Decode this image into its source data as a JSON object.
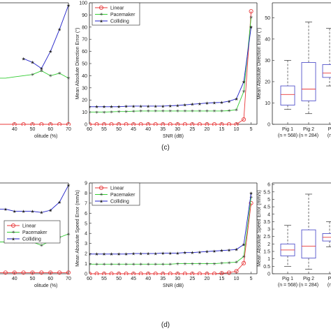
{
  "panel_labels": [
    "(c)",
    "(d)"
  ],
  "legend_names": [
    "Linear",
    "Pacemaker",
    "Colliding"
  ],
  "colors": {
    "linear": "#e8383a",
    "pacemaker": "#33cc33",
    "colliding": "#1f1fc8",
    "box": "#5555cc",
    "median": "#e8383a",
    "axis": "#222222"
  },
  "chart_data": [
    {
      "id": "c-left",
      "type": "line",
      "title": "",
      "xlabel": "olitude (%)",
      "ylabel": "",
      "xlim": [
        30,
        70
      ],
      "ylim": [
        0,
        100
      ],
      "xticks": [
        "40",
        "50",
        "60",
        "70"
      ],
      "xtick_values": [
        40,
        50,
        60,
        70
      ],
      "x": [
        30,
        35,
        40,
        45,
        50,
        55,
        60,
        65,
        70
      ],
      "series": [
        {
          "name": "Linear",
          "values": [
            0,
            0,
            0,
            0,
            0,
            0,
            0,
            0,
            0
          ]
        },
        {
          "name": "Pacemaker",
          "values": [
            38,
            38,
            39,
            40,
            41,
            44,
            40,
            42,
            38
          ]
        },
        {
          "name": "Colliding",
          "values": [
            null,
            null,
            null,
            54,
            51,
            46,
            60,
            78,
            98
          ]
        }
      ],
      "markers": {
        "Linear": [
          false,
          false,
          true,
          true,
          true,
          true,
          true,
          true,
          true
        ],
        "Pacemaker": [
          false,
          false,
          false,
          false,
          true,
          true,
          true,
          true,
          true
        ],
        "Colliding": [
          false,
          false,
          false,
          true,
          true,
          true,
          true,
          true,
          true
        ]
      },
      "legend": false
    },
    {
      "id": "c-mid",
      "type": "line",
      "title": "",
      "xlabel": "SNR (dB)",
      "ylabel": "Mean Absolute Direction Error (°)",
      "xlim": [
        60,
        3
      ],
      "ylim": [
        0,
        100
      ],
      "yticks": [
        "0",
        "10",
        "20",
        "30",
        "40",
        "50",
        "60",
        "70",
        "80",
        "90",
        "100"
      ],
      "ytick_values": [
        0,
        10,
        20,
        30,
        40,
        50,
        60,
        70,
        80,
        90,
        100
      ],
      "xticks": [
        "60",
        "55",
        "50",
        "45",
        "40",
        "35",
        "30",
        "25",
        "20",
        "15",
        "10",
        "5"
      ],
      "xtick_values": [
        60,
        55,
        50,
        45,
        40,
        35,
        30,
        25,
        20,
        15,
        10,
        5
      ],
      "x": [
        60,
        57.5,
        55,
        52.5,
        50,
        47.5,
        45,
        42.5,
        40,
        37.5,
        35,
        32.5,
        30,
        27.5,
        25,
        22.5,
        20,
        17.5,
        15,
        12.5,
        10,
        7.5,
        5
      ],
      "series": [
        {
          "name": "Linear",
          "values": [
            0,
            0,
            0,
            0,
            0,
            0,
            0,
            0,
            0,
            0,
            0,
            0,
            0,
            0,
            0,
            0,
            0,
            0,
            0,
            0,
            0,
            4,
            93
          ]
        },
        {
          "name": "Pacemaker",
          "values": [
            10,
            10,
            10,
            10.3,
            10.5,
            10.5,
            10.8,
            11,
            11,
            11,
            11,
            11,
            11,
            11,
            11,
            11,
            11,
            11,
            11,
            11.2,
            12,
            27,
            88
          ]
        },
        {
          "name": "Colliding",
          "values": [
            14.5,
            14.5,
            14.5,
            14.5,
            14.5,
            14.8,
            15,
            15,
            15,
            15,
            15,
            15.3,
            15.5,
            16,
            16.5,
            17,
            17.5,
            17.8,
            18,
            19,
            21,
            35,
            80
          ]
        }
      ],
      "legend": true,
      "legend_position": "top-left"
    },
    {
      "id": "c-right",
      "type": "box",
      "title": "",
      "xlabel": "",
      "ylabel": "Mean Absolute Direction Error (°)",
      "ylim": [
        0,
        57
      ],
      "yticks": [
        "0",
        "10",
        "20",
        "30",
        "40",
        "50"
      ],
      "ytick_values": [
        0,
        10,
        20,
        30,
        40,
        50
      ],
      "categories": [
        {
          "name": "Pig 1",
          "n": "(n = 568)",
          "whisker_low": 7,
          "q1": 9,
          "median": 14,
          "q3": 18,
          "whisker_high": 30
        },
        {
          "name": "Pig 2",
          "n": "(n = 284)",
          "whisker_low": 5,
          "q1": 11,
          "median": 16.5,
          "q3": 29,
          "whisker_high": 48
        },
        {
          "name": "P",
          "n": "(n",
          "whisker_low": 18,
          "q1": 22,
          "median": 24,
          "q3": 28,
          "whisker_high": 45
        }
      ]
    },
    {
      "id": "d-left",
      "type": "line",
      "title": "",
      "xlabel": "olitude (%)",
      "ylabel": "",
      "xlim": [
        30,
        70
      ],
      "ylim": [
        0,
        8
      ],
      "xticks": [
        "40",
        "50",
        "60",
        "70"
      ],
      "xtick_values": [
        40,
        50,
        60,
        70
      ],
      "x": [
        30,
        35,
        40,
        45,
        50,
        55,
        60,
        65,
        70
      ],
      "series": [
        {
          "name": "Linear",
          "values": [
            0.1,
            0.1,
            0.1,
            0.1,
            0.1,
            0.1,
            0.1,
            0.1,
            0.1
          ]
        },
        {
          "name": "Pacemaker",
          "values": [
            2.8,
            2.8,
            2.8,
            2.8,
            2.8,
            2.5,
            2.9,
            3.2,
            3.5
          ]
        },
        {
          "name": "Colliding",
          "values": [
            5.7,
            5.7,
            5.5,
            5.5,
            5.5,
            5.4,
            5.6,
            6.3,
            7.8
          ]
        }
      ],
      "legend": true,
      "legend_position": "center"
    },
    {
      "id": "d-mid",
      "type": "line",
      "title": "",
      "xlabel": "SNR (dB)",
      "ylabel": "Mean Absolute Speed Error (mm/s)",
      "xlim": [
        60,
        3
      ],
      "ylim": [
        0,
        9
      ],
      "yticks": [
        "0",
        "1",
        "2",
        "3",
        "4",
        "5",
        "6",
        "7",
        "8",
        "9"
      ],
      "ytick_values": [
        0,
        1,
        2,
        3,
        4,
        5,
        6,
        7,
        8,
        9
      ],
      "xticks": [
        "60",
        "55",
        "50",
        "45",
        "40",
        "35",
        "30",
        "25",
        "20",
        "15",
        "10",
        "5"
      ],
      "xtick_values": [
        60,
        55,
        50,
        45,
        40,
        35,
        30,
        25,
        20,
        15,
        10,
        5
      ],
      "x": [
        60,
        57.5,
        55,
        52.5,
        50,
        47.5,
        45,
        42.5,
        40,
        37.5,
        35,
        32.5,
        30,
        27.5,
        25,
        22.5,
        20,
        17.5,
        15,
        12.5,
        10,
        7.5,
        5
      ],
      "series": [
        {
          "name": "Linear",
          "values": [
            0,
            0,
            0,
            0,
            0,
            0,
            0,
            0,
            0,
            0,
            0,
            0,
            0,
            0,
            0,
            0,
            0,
            0,
            0.05,
            0.1,
            0.25,
            1.05,
            7.0
          ]
        },
        {
          "name": "Pacemaker",
          "values": [
            0.95,
            0.95,
            0.95,
            0.95,
            0.95,
            0.95,
            0.95,
            0.95,
            0.95,
            0.95,
            0.95,
            0.95,
            1.0,
            1.0,
            1.0,
            1.0,
            1.0,
            1.0,
            1.05,
            1.1,
            1.15,
            1.7,
            7.6
          ]
        },
        {
          "name": "Colliding",
          "values": [
            1.95,
            1.95,
            1.95,
            1.95,
            1.95,
            1.95,
            2.0,
            2.0,
            2.0,
            2.0,
            2.05,
            2.05,
            2.05,
            2.1,
            2.1,
            2.15,
            2.2,
            2.25,
            2.3,
            2.35,
            2.4,
            2.9,
            8.0
          ]
        }
      ],
      "legend": true,
      "legend_position": "top-left"
    },
    {
      "id": "d-right",
      "type": "box",
      "title": "",
      "xlabel": "",
      "ylabel": "Mean Absolute Speed Error (mm/s)",
      "ylim": [
        0,
        6.1
      ],
      "yticks": [
        "0",
        "0.5",
        "1",
        "1.5",
        "2",
        "2.5",
        "3",
        "3.5",
        "4",
        "4.5",
        "5",
        "5.5",
        "6"
      ],
      "ytick_values": [
        0,
        0.5,
        1,
        1.5,
        2,
        2.5,
        3,
        3.5,
        4,
        4.5,
        5,
        5.5,
        6
      ],
      "categories": [
        {
          "name": "Pig 1",
          "n": "(n = 568)",
          "whisker_low": 0.5,
          "q1": 1.2,
          "median": 1.6,
          "q3": 2.0,
          "whisker_high": 3.25
        },
        {
          "name": "Pig 2",
          "n": "(n = 284)",
          "whisker_low": 0.3,
          "q1": 1.05,
          "median": 1.85,
          "q3": 2.95,
          "whisker_high": 5.35
        },
        {
          "name": "P",
          "n": "(n",
          "whisker_low": 1.8,
          "q1": 2.2,
          "median": 2.45,
          "q3": 2.7,
          "whisker_high": 3.5
        }
      ]
    }
  ]
}
